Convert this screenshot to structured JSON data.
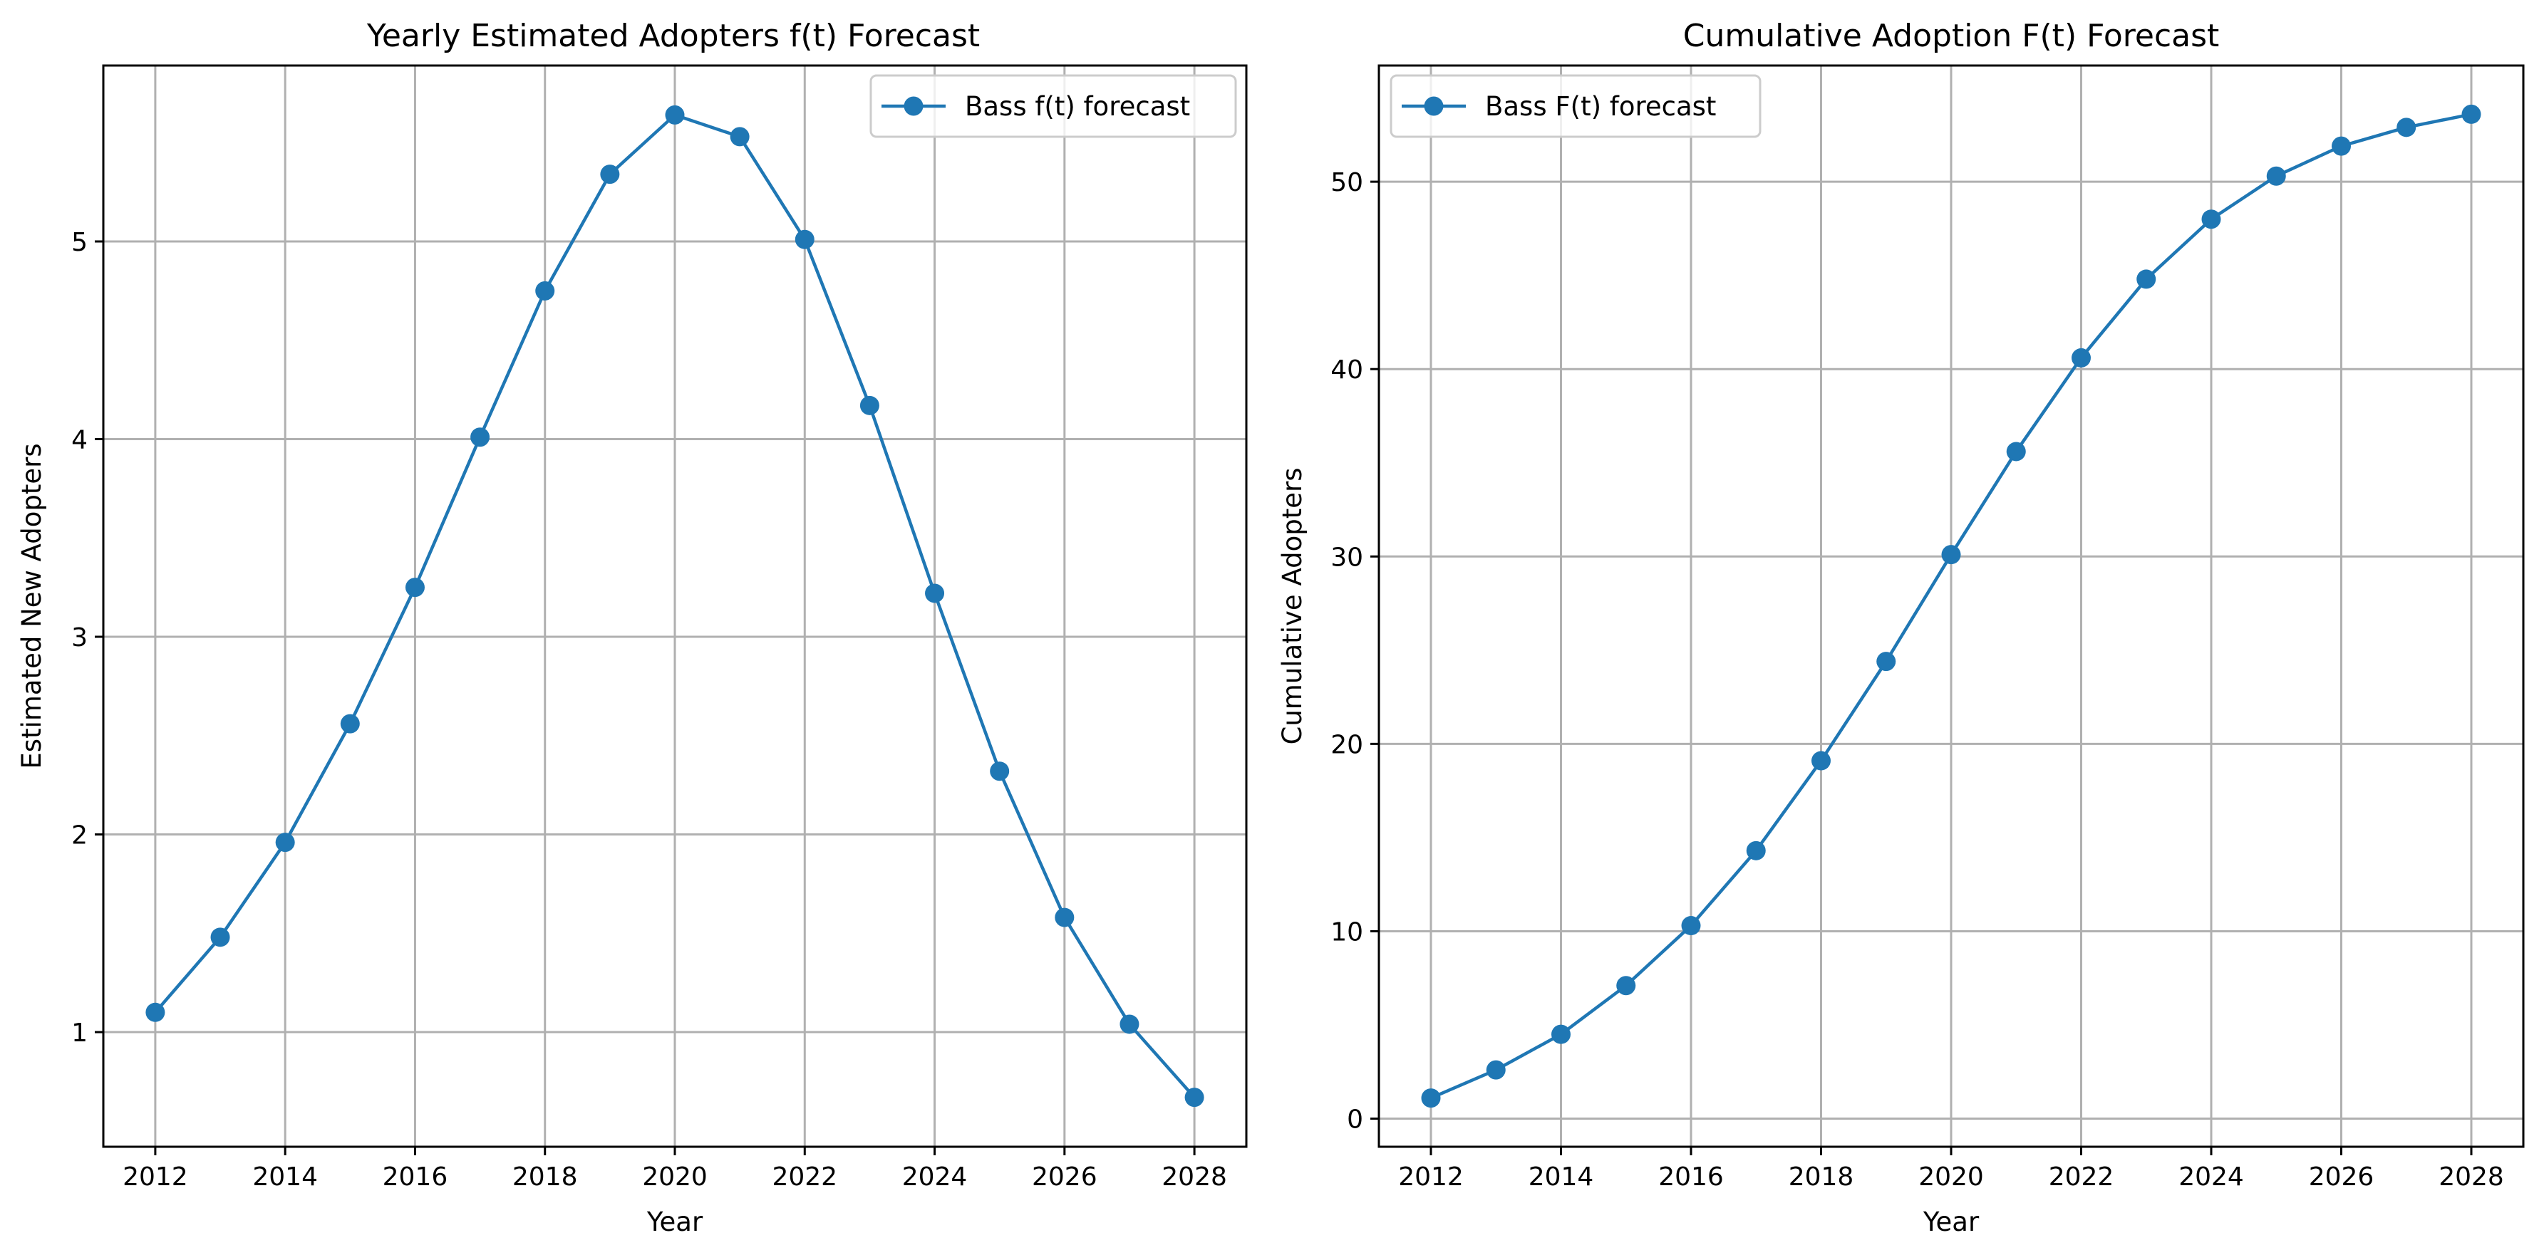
{
  "colors": {
    "series": "#1f77b4",
    "grid": "#b0b0b0",
    "axes": "#000000"
  },
  "chart_data": [
    {
      "type": "line",
      "title": "Yearly Estimated Adopters f(t) Forecast",
      "xlabel": "Year",
      "ylabel": "Estimated New Adopters",
      "x": [
        2012,
        2013,
        2014,
        2015,
        2016,
        2017,
        2018,
        2019,
        2020,
        2021,
        2022,
        2023,
        2024,
        2025,
        2026,
        2027,
        2028
      ],
      "series": [
        {
          "name": "Bass f(t) forecast",
          "values": [
            1.1,
            1.48,
            1.96,
            2.56,
            3.25,
            4.01,
            4.75,
            5.34,
            5.64,
            5.53,
            5.01,
            4.17,
            3.22,
            2.32,
            1.58,
            1.04,
            0.67
          ],
          "marker": "circle",
          "color": "#1f77b4"
        }
      ],
      "xlim": [
        2011.2,
        2028.8
      ],
      "ylim": [
        0.42,
        5.89
      ],
      "xticks": [
        2012,
        2014,
        2016,
        2018,
        2020,
        2022,
        2024,
        2026,
        2028
      ],
      "xtick_labels": [
        "2012",
        "2014",
        "2016",
        "2018",
        "2020",
        "2022",
        "2024",
        "2026",
        "2028"
      ],
      "yticks": [
        1,
        2,
        3,
        4,
        5
      ],
      "ytick_labels": [
        "1",
        "2",
        "3",
        "4",
        "5"
      ],
      "grid": true,
      "legend": "upper right"
    },
    {
      "type": "line",
      "title": "Cumulative Adoption F(t) Forecast",
      "xlabel": "Year",
      "ylabel": "Cumulative Adopters",
      "x": [
        2012,
        2013,
        2014,
        2015,
        2016,
        2017,
        2018,
        2019,
        2020,
        2021,
        2022,
        2023,
        2024,
        2025,
        2026,
        2027,
        2028
      ],
      "series": [
        {
          "name": "Bass F(t) forecast",
          "values": [
            1.1,
            2.6,
            4.5,
            7.1,
            10.3,
            14.3,
            19.1,
            24.4,
            30.1,
            35.6,
            40.6,
            44.8,
            48.0,
            50.3,
            51.9,
            52.9,
            53.6
          ],
          "marker": "circle",
          "color": "#1f77b4"
        }
      ],
      "xlim": [
        2011.2,
        2028.8
      ],
      "ylim": [
        -1.5,
        56.2
      ],
      "xticks": [
        2012,
        2014,
        2016,
        2018,
        2020,
        2022,
        2024,
        2026,
        2028
      ],
      "xtick_labels": [
        "2012",
        "2014",
        "2016",
        "2018",
        "2020",
        "2022",
        "2024",
        "2026",
        "2028"
      ],
      "yticks": [
        0,
        10,
        20,
        30,
        40,
        50
      ],
      "ytick_labels": [
        "0",
        "10",
        "20",
        "30",
        "40",
        "50"
      ],
      "grid": true,
      "legend": "upper left"
    }
  ]
}
